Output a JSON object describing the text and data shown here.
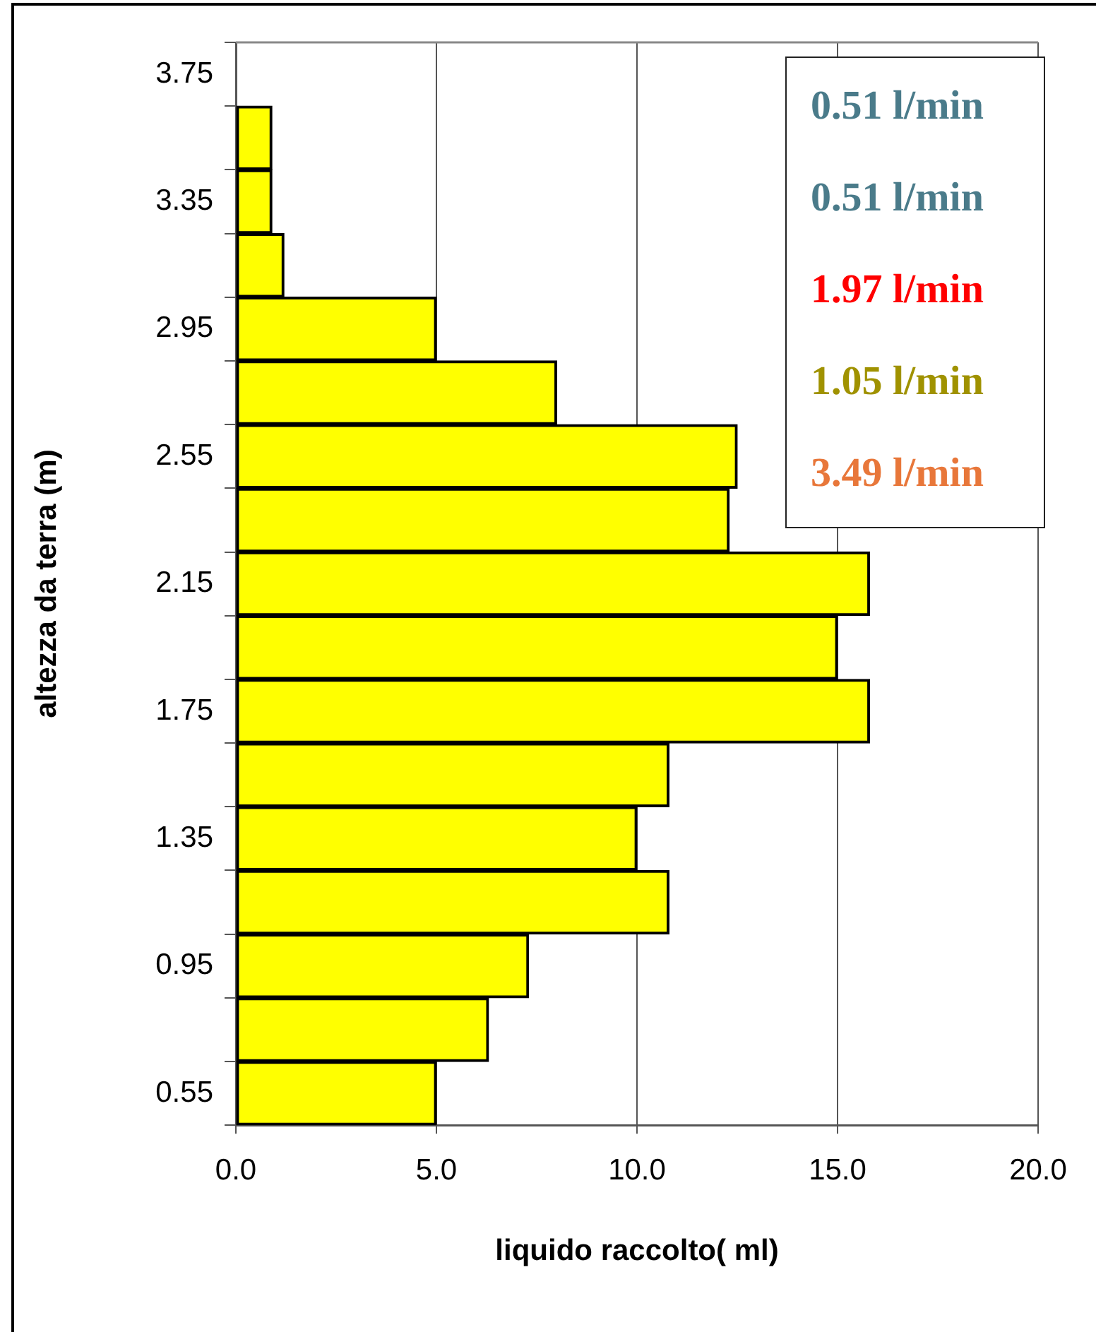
{
  "chart_data": {
    "type": "bar",
    "orientation": "horizontal",
    "xlabel": "liquido raccolto( ml)",
    "ylabel": "altezza da terra (m)",
    "categories": [
      "3.75",
      null,
      "3.35",
      null,
      "2.95",
      null,
      "2.55",
      null,
      "2.15",
      null,
      "1.75",
      null,
      "1.35",
      null,
      "0.95",
      null,
      "0.55"
    ],
    "values": [
      null,
      0.9,
      0.9,
      1.2,
      5.0,
      8.0,
      12.5,
      12.3,
      15.8,
      15.0,
      15.8,
      10.8,
      10.0,
      10.8,
      7.3,
      6.3,
      5.0
    ],
    "color": "#ffff00",
    "xlim": [
      0,
      20
    ],
    "xticks": [
      {
        "value": 0,
        "label": "0.0"
      },
      {
        "value": 5,
        "label": "5.0"
      },
      {
        "value": 10,
        "label": "10.0"
      },
      {
        "value": 15,
        "label": "15.0"
      },
      {
        "value": 20,
        "label": "20.0"
      }
    ],
    "grid": "x",
    "legend": false,
    "annotations": [
      "0.51 l/min",
      "0.51 l/min",
      "1.97 l/min",
      "1.05 l/min",
      "3.49 l/min"
    ]
  }
}
